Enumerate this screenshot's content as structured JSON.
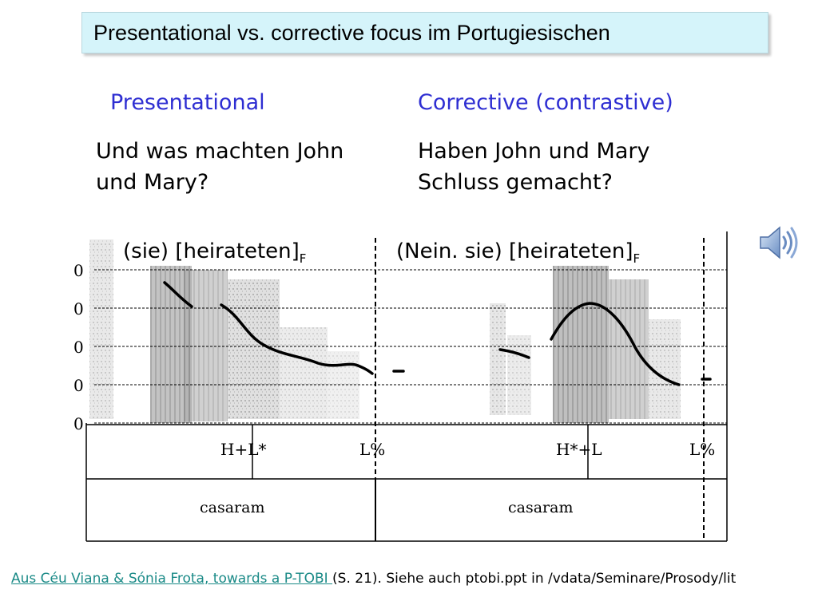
{
  "title": "Presentational vs. corrective focus im Portugiesischen",
  "left": {
    "heading": "Presentational",
    "question_line1": "Und was machten John",
    "question_line2": "und Mary?",
    "label_main": "(sie) [heirateten]",
    "label_sub": "F",
    "tone_accent": "H+L*",
    "tone_boundary": "L%",
    "word": "casaram"
  },
  "right": {
    "heading": "Corrective (contrastive)",
    "question_line1": "Haben John und Mary",
    "question_line2": "Schluss gemacht?",
    "label_main": "(Nein. sie) [heirateten]",
    "label_sub": "F",
    "tone_accent": "H*+L",
    "tone_boundary": "L%",
    "word": "casaram"
  },
  "axis_ticks": [
    "0",
    "0",
    "0",
    "0",
    "0"
  ],
  "audio_icon": "speaker-icon",
  "footer": {
    "link_text": "Aus Céu Viana & Sónia Frota, towards a P-TOBI ",
    "rest_text": "(S. 21). Siehe auch ptobi.ppt in /vdata/Seminare/Prosody/lit"
  }
}
